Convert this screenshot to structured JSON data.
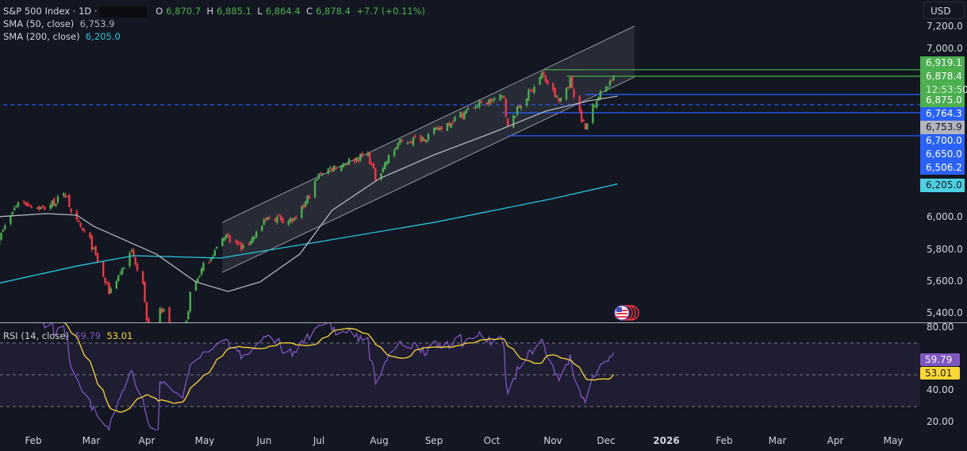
{
  "legend": {
    "symbol": "S&P 500 Index · 1D ·",
    "open_label": "O",
    "open": "6,870.7",
    "high_label": "H",
    "high": "6,885.1",
    "low_label": "L",
    "low": "6,864.4",
    "close_label": "C",
    "close": "6,878.4",
    "change": "+7.7 (+0.11%)",
    "sma50_label": "SMA (50, close)",
    "sma50_value": "6,753.9",
    "sma200_label": "SMA (200, close)",
    "sma200_value": "6,205.0",
    "rsi_label": "RSI (14, close)",
    "rsi_value": "59.79",
    "rsi_ma_value": "53.01"
  },
  "currency_button": "USD",
  "price_labels": [
    {
      "text": "6,919.1",
      "color": "#4caf50"
    },
    {
      "text": "6,878.4",
      "sub": "12:53:50",
      "color": "#4caf50"
    },
    {
      "text": "6,875.0",
      "color": "#4caf50"
    },
    {
      "text": "6,764.3",
      "color": "#2962ff"
    },
    {
      "text": "6,753.9",
      "color": "#b2b5be"
    },
    {
      "text": "6,700.0",
      "color": "#2962ff"
    },
    {
      "text": "6,650.0",
      "color": "#2962ff"
    },
    {
      "text": "6,506.2",
      "color": "#2962ff"
    },
    {
      "text": "6,205.0",
      "color": "#4dd0e1"
    }
  ],
  "colors": {
    "up": "#4caf50",
    "down": "#f23645",
    "sma50": "#b2b5be",
    "sma200": "#26c6da",
    "rsi": "#7e57c2",
    "rsi_ma": "#fdd835",
    "levels": "#2962ff"
  },
  "chart_data": [
    {
      "type": "candlestick",
      "title": "S&P 500 Index · 1D",
      "y_ticks": [
        "7,200.0",
        "7,000.0",
        "6,000.0",
        "5,800.0",
        "5,600.0",
        "5,400.0"
      ],
      "ylim": [
        5380,
        7250
      ],
      "x_ticks": [
        "Feb",
        "Mar",
        "Apr",
        "May",
        "Jun",
        "Jul",
        "Aug",
        "Sep",
        "Oct",
        "Nov",
        "Dec",
        "2026",
        "Feb",
        "Mar",
        "Apr",
        "May"
      ],
      "close_path": [
        [
          "2025-01-13",
          5840
        ],
        [
          "2025-01-24",
          6100
        ],
        [
          "2025-02-06",
          6050
        ],
        [
          "2025-02-19",
          6140
        ],
        [
          "2025-02-21",
          6010
        ],
        [
          "2025-03-03",
          5850
        ],
        [
          "2025-03-10",
          5620
        ],
        [
          "2025-03-13",
          5530
        ],
        [
          "2025-03-25",
          5780
        ],
        [
          "2025-03-31",
          5600
        ],
        [
          "2025-04-04",
          5080
        ],
        [
          "2025-04-08",
          4980
        ],
        [
          "2025-04-09",
          5450
        ],
        [
          "2025-04-21",
          5150
        ],
        [
          "2025-04-25",
          5520
        ],
        [
          "2025-05-02",
          5690
        ],
        [
          "2025-05-12",
          5850
        ],
        [
          "2025-05-13",
          5890
        ],
        [
          "2025-05-23",
          5800
        ],
        [
          "2025-06-06",
          6000
        ],
        [
          "2025-06-20",
          5970
        ],
        [
          "2025-07-03",
          6280
        ],
        [
          "2025-07-28",
          6390
        ],
        [
          "2025-08-01",
          6240
        ],
        [
          "2025-08-13",
          6460
        ],
        [
          "2025-08-28",
          6500
        ],
        [
          "2025-09-22",
          6690
        ],
        [
          "2025-10-08",
          6750
        ],
        [
          "2025-10-10",
          6550
        ],
        [
          "2025-10-14",
          6650
        ],
        [
          "2025-10-28",
          6890
        ],
        [
          "2025-11-06",
          6720
        ],
        [
          "2025-11-12",
          6850
        ],
        [
          "2025-11-20",
          6540
        ],
        [
          "2025-11-24",
          6705
        ],
        [
          "2025-12-05",
          6878.4
        ]
      ],
      "sma50": [
        [
          "2025-01-13",
          6000
        ],
        [
          "2025-02-08",
          6020
        ],
        [
          "2025-02-24",
          6010
        ],
        [
          "2025-03-05",
          5940
        ],
        [
          "2025-04-07",
          5767
        ],
        [
          "2025-04-28",
          5593
        ],
        [
          "2025-05-15",
          5533
        ],
        [
          "2025-06-01",
          5593
        ],
        [
          "2025-06-22",
          5767
        ],
        [
          "2025-07-09",
          6040
        ],
        [
          "2025-08-03",
          6238
        ],
        [
          "2025-09-01",
          6387
        ],
        [
          "2025-10-01",
          6521
        ],
        [
          "2025-10-30",
          6660
        ],
        [
          "2025-11-22",
          6725
        ],
        [
          "2025-12-07",
          6753.9
        ]
      ],
      "sma200": [
        [
          "2025-01-13",
          5583
        ],
        [
          "2025-02-24",
          5692
        ],
        [
          "2025-03-26",
          5757
        ],
        [
          "2025-05-11",
          5742
        ],
        [
          "2025-07-01",
          5841
        ],
        [
          "2025-09-01",
          5965
        ],
        [
          "2025-11-03",
          6114
        ],
        [
          "2025-12-07",
          6205.0
        ]
      ],
      "channel": {
        "upper": [
          [
            "2025-05-12",
            5965
          ],
          [
            "2025-12-16",
            7191
          ]
        ],
        "lower": [
          [
            "2025-05-12",
            5653
          ],
          [
            "2025-12-16",
            6873
          ]
        ]
      },
      "levels": [
        {
          "price": 6919.1,
          "from": "2025-10-29",
          "color": "#4caf50",
          "style": "solid"
        },
        {
          "price": 6878.4,
          "from": "2025-11-10",
          "color": "#4caf50",
          "style": "solid"
        },
        {
          "price": 6764.3,
          "from": "2025-11-20",
          "color": "#2962ff",
          "style": "solid"
        },
        {
          "price": 6700.0,
          "from": "2025-01-01",
          "color": "#2962ff",
          "style": "dashed"
        },
        {
          "price": 6650.0,
          "from": "2025-10-07",
          "color": "#2962ff",
          "style": "solid"
        },
        {
          "price": 6506.2,
          "from": "2025-10-10",
          "color": "#2962ff",
          "style": "solid"
        }
      ]
    },
    {
      "type": "line",
      "title": "RSI (14, close)",
      "y_ticks": [
        "80.00",
        "40.00",
        "20.00"
      ],
      "ylim": [
        10,
        80
      ],
      "bands": [
        30,
        50,
        70
      ],
      "series": [
        {
          "name": "RSI",
          "last": 59.79
        },
        {
          "name": "RSI MA",
          "last": 53.01
        }
      ]
    }
  ]
}
